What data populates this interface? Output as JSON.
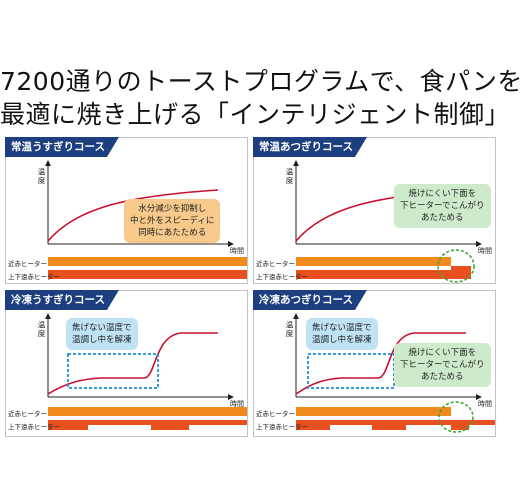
{
  "headline": {
    "line1": "7200通りのトーストプログラムで、食パンを",
    "line2": "最適に焼き上げる「インテリジェント制御」"
  },
  "axis": {
    "y": "温度",
    "x": "時間"
  },
  "heaters": {
    "top": "近赤ヒーター",
    "bottom": "上下遠赤ヒーター"
  },
  "colors": {
    "tab": "#1d3f7f",
    "curve": "#c8102e",
    "bar_orange": "#f08a1c",
    "bar_red": "#e8501f",
    "dotted_blue": "#1f8fd6",
    "dotted_green": "#3aa935"
  },
  "panels": [
    {
      "title": "常温うすぎりコース",
      "note": [
        "水分減少を抑制し",
        "中と外をスピーディに",
        "同時にあたためる"
      ]
    },
    {
      "title": "常温あつぎりコース",
      "note": [
        "焼けにくい下面を",
        "下ヒーターでこんがり",
        "あたためる"
      ]
    },
    {
      "title": "冷凍うすぎりコース",
      "note": [
        "焦げない温度で",
        "温調し中を解凍"
      ]
    },
    {
      "title": "冷凍あつぎりコース",
      "note_top": [
        "焦げない温度で",
        "温調し中を解凍"
      ],
      "note": [
        "焼けにくい下面を",
        "下ヒーターでこんがり",
        "あたためる"
      ]
    }
  ]
}
